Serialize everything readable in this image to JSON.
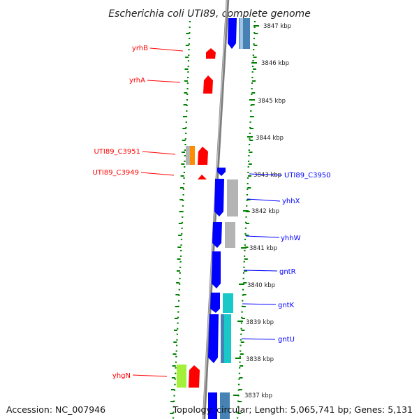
{
  "title": "Escherichia coli UTI89, complete genome",
  "accession": "Accession: NC_007946",
  "topology": "Topology: circular; Length: 5,065,741 bp; Genes: 5,131",
  "colors": {
    "forward_gene": "#ff0000",
    "reverse_gene": "#0000ff",
    "backbone": "#808080",
    "ticks": "#008000",
    "cog_orange": "#ff8c00",
    "cog_lime": "#a3f03b",
    "cog_cyan": "#19c8c8",
    "cog_steel": "#4682b4",
    "cog_gray": "#b4b4b4"
  },
  "ticks": [
    "3847 kbp",
    "3846 kbp",
    "3845 kbp",
    "3844 kbp",
    "3843 kbp",
    "3842 kbp",
    "3841 kbp",
    "3840 kbp",
    "3839 kbp",
    "3838 kbp",
    "3837 kbp"
  ],
  "forward_genes": [
    "yrhB",
    "yrhA",
    "UTI89_C3951",
    "UTI89_C3949",
    "yhgN"
  ],
  "reverse_genes": [
    "UTI89_C3950",
    "yhhX",
    "yhhW",
    "gntR",
    "gntK",
    "gntU"
  ]
}
